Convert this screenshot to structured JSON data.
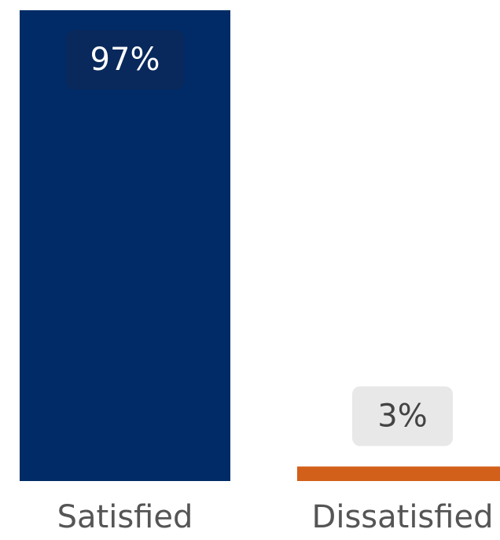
{
  "chart_data": {
    "type": "bar",
    "categories": [
      "Satisfied",
      "Dissatisfied"
    ],
    "values": [
      97,
      3
    ],
    "value_labels": [
      "97%",
      "3%"
    ],
    "colors": [
      "#002b66",
      "#d2601a"
    ],
    "ylim": [
      0,
      100
    ]
  }
}
